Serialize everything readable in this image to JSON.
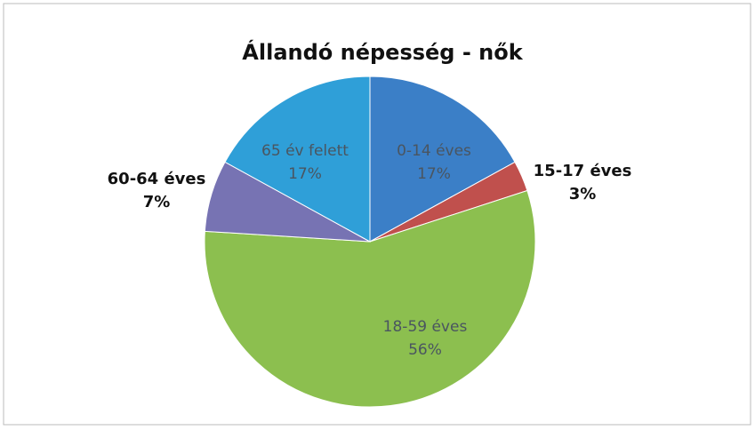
{
  "chart_data": {
    "type": "pie",
    "title": "Állandó népesség - nők",
    "categories": [
      "0-14 éves",
      "15-17 éves",
      "18-59 éves",
      "60-64 éves",
      "65 év felett"
    ],
    "values": [
      17,
      3,
      56,
      7,
      17
    ],
    "value_labels": [
      "17%",
      "3%",
      "56%",
      "7%",
      "17%"
    ],
    "colors": [
      "#3b7fc7",
      "#c0504d",
      "#8cbf4f",
      "#7773b3",
      "#2f9fd8"
    ]
  }
}
